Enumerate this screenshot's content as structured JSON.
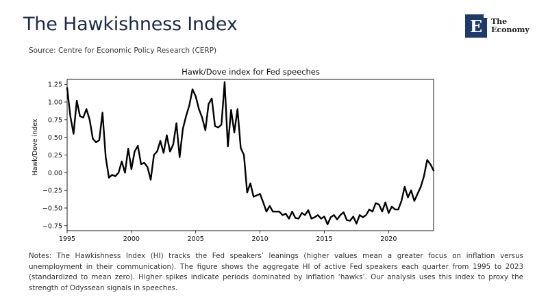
{
  "header": {
    "title": "The Hawkishness Index",
    "source": "Source: Centre for Economic Policy Research (CERP)"
  },
  "logo": {
    "mark": "E",
    "line1": "The",
    "line2": "Economy"
  },
  "chart_data": {
    "type": "line",
    "title": "Hawk/Dove index for Fed speeches",
    "xlabel": "",
    "ylabel": "Hawk/Dove index",
    "xlim": [
      1995,
      2023.5
    ],
    "ylim": [
      -0.82,
      1.32
    ],
    "x_ticks": [
      1995,
      2000,
      2005,
      2010,
      2015,
      2020
    ],
    "y_ticks": [
      -0.75,
      -0.5,
      -0.25,
      0.0,
      0.25,
      0.5,
      0.75,
      1.0,
      1.25
    ],
    "y_tick_labels": [
      "−0.75",
      "−0.50",
      "−0.25",
      "0.00",
      "0.25",
      "0.50",
      "0.75",
      "1.00",
      "1.25"
    ],
    "grid": false,
    "series": [
      {
        "name": "Hawk/Dove index",
        "x": [
          1995.0,
          1995.25,
          1995.5,
          1995.75,
          1996.0,
          1996.25,
          1996.5,
          1996.75,
          1997.0,
          1997.25,
          1997.5,
          1997.75,
          1998.0,
          1998.25,
          1998.5,
          1998.75,
          1999.0,
          1999.25,
          1999.5,
          1999.75,
          2000.0,
          2000.25,
          2000.5,
          2000.75,
          2001.0,
          2001.25,
          2001.5,
          2001.75,
          2002.0,
          2002.25,
          2002.5,
          2002.75,
          2003.0,
          2003.25,
          2003.5,
          2003.75,
          2004.0,
          2004.25,
          2004.5,
          2004.75,
          2005.0,
          2005.25,
          2005.5,
          2005.75,
          2006.0,
          2006.25,
          2006.5,
          2006.75,
          2007.0,
          2007.25,
          2007.5,
          2007.75,
          2008.0,
          2008.25,
          2008.5,
          2008.75,
          2009.0,
          2009.25,
          2009.5,
          2009.75,
          2010.0,
          2010.25,
          2010.5,
          2010.75,
          2011.0,
          2011.25,
          2011.5,
          2011.75,
          2012.0,
          2012.25,
          2012.5,
          2012.75,
          2013.0,
          2013.25,
          2013.5,
          2013.75,
          2014.0,
          2014.25,
          2014.5,
          2014.75,
          2015.0,
          2015.25,
          2015.5,
          2015.75,
          2016.0,
          2016.25,
          2016.5,
          2016.75,
          2017.0,
          2017.25,
          2017.5,
          2017.75,
          2018.0,
          2018.25,
          2018.5,
          2018.75,
          2019.0,
          2019.25,
          2019.5,
          2019.75,
          2020.0,
          2020.25,
          2020.5,
          2020.75,
          2021.0,
          2021.25,
          2021.5,
          2021.75,
          2022.0,
          2022.25,
          2022.5,
          2022.75,
          2023.0,
          2023.25,
          2023.5
        ],
        "values": [
          1.2,
          0.8,
          0.55,
          1.02,
          0.8,
          0.78,
          0.9,
          0.75,
          0.48,
          0.43,
          0.46,
          0.85,
          0.22,
          -0.07,
          -0.03,
          -0.05,
          0.0,
          0.16,
          0.0,
          0.34,
          0.05,
          0.3,
          0.38,
          0.12,
          0.14,
          0.08,
          -0.1,
          0.25,
          0.3,
          0.45,
          0.28,
          0.53,
          0.3,
          0.4,
          0.7,
          0.22,
          0.62,
          0.8,
          0.95,
          1.18,
          1.08,
          0.9,
          0.78,
          0.6,
          0.97,
          1.05,
          0.66,
          0.64,
          0.68,
          1.28,
          0.37,
          0.89,
          0.57,
          0.9,
          0.35,
          0.25,
          -0.28,
          -0.15,
          -0.34,
          -0.32,
          -0.3,
          -0.42,
          -0.55,
          -0.47,
          -0.55,
          -0.55,
          -0.55,
          -0.6,
          -0.58,
          -0.65,
          -0.55,
          -0.64,
          -0.65,
          -0.57,
          -0.6,
          -0.53,
          -0.65,
          -0.63,
          -0.6,
          -0.65,
          -0.62,
          -0.73,
          -0.63,
          -0.6,
          -0.66,
          -0.6,
          -0.56,
          -0.67,
          -0.68,
          -0.62,
          -0.72,
          -0.6,
          -0.63,
          -0.6,
          -0.52,
          -0.55,
          -0.43,
          -0.45,
          -0.55,
          -0.42,
          -0.57,
          -0.48,
          -0.52,
          -0.52,
          -0.4,
          -0.2,
          -0.35,
          -0.25,
          -0.4,
          -0.3,
          -0.2,
          -0.05,
          0.18,
          0.12,
          0.03
        ]
      }
    ]
  },
  "notes": "Notes: The Hawkishness Index (HI) tracks the Fed speakers’ leanings (higher values mean a greater focus on inflation versus unemployment in their communication). The figure shows the aggregate HI of active Fed speakers each quarter from 1995 to 2023 (standardized to mean zero). Higher spikes indicate periods dominated by inflation ‘hawks’. Our analysis uses this index to proxy the strength of Odyssean signals in speeches."
}
